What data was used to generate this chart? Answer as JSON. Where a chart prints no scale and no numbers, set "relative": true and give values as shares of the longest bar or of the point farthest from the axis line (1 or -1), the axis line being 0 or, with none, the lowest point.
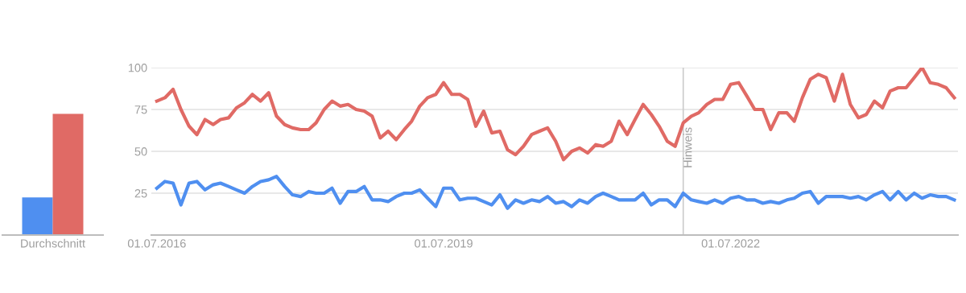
{
  "chart_data": [
    {
      "type": "bar",
      "relative": true,
      "categories": [
        "Durchschnitt"
      ],
      "series": [
        {
          "color": "#4f8ff0",
          "values": [
            0.31
          ]
        },
        {
          "color": "#e06a65",
          "values": [
            1
          ]
        }
      ]
    },
    {
      "type": "line",
      "grid": "y",
      "marker": "none",
      "line_style": "solid",
      "x": [
        "2016-07",
        "2016-08",
        "2016-09",
        "2016-10",
        "2016-11",
        "2016-12",
        "2017-01",
        "2017-02",
        "2017-03",
        "2017-04",
        "2017-05",
        "2017-06",
        "2017-07",
        "2017-08",
        "2017-09",
        "2017-10",
        "2017-11",
        "2017-12",
        "2018-01",
        "2018-02",
        "2018-03",
        "2018-04",
        "2018-05",
        "2018-06",
        "2018-07",
        "2018-08",
        "2018-09",
        "2018-10",
        "2018-11",
        "2018-12",
        "2019-01",
        "2019-02",
        "2019-03",
        "2019-04",
        "2019-05",
        "2019-06",
        "2019-07",
        "2019-08",
        "2019-09",
        "2019-10",
        "2019-11",
        "2019-12",
        "2020-01",
        "2020-02",
        "2020-03",
        "2020-04",
        "2020-05",
        "2020-06",
        "2020-07",
        "2020-08",
        "2020-09",
        "2020-10",
        "2020-11",
        "2020-12",
        "2021-01",
        "2021-02",
        "2021-03",
        "2021-04",
        "2021-05",
        "2021-06",
        "2021-07",
        "2021-08",
        "2021-09",
        "2021-10",
        "2021-11",
        "2021-12",
        "2022-01",
        "2022-02",
        "2022-03",
        "2022-04",
        "2022-05",
        "2022-06",
        "2022-07",
        "2022-08",
        "2022-09",
        "2022-10",
        "2022-11",
        "2022-12",
        "2023-01",
        "2023-02",
        "2023-03",
        "2023-04",
        "2023-05",
        "2023-06",
        "2023-07",
        "2023-08",
        "2023-09",
        "2023-10",
        "2023-11",
        "2023-12",
        "2024-01",
        "2024-02",
        "2024-03",
        "2024-04",
        "2024-05",
        "2024-06",
        "2024-07",
        "2024-08",
        "2024-09",
        "2024-10",
        "2024-11"
      ],
      "series": [
        {
          "color": "#4f8ff0",
          "values": [
            28,
            32,
            31,
            18,
            31,
            32,
            27,
            30,
            31,
            29,
            27,
            25,
            29,
            32,
            33,
            35,
            29,
            24,
            23,
            26,
            25,
            25,
            28,
            19,
            26,
            26,
            29,
            21,
            21,
            20,
            23,
            25,
            25,
            27,
            22,
            17,
            28,
            28,
            21,
            22,
            22,
            20,
            18,
            24,
            16,
            21,
            19,
            21,
            20,
            23,
            19,
            20,
            17,
            21,
            19,
            23,
            25,
            23,
            21,
            21,
            21,
            25,
            18,
            21,
            21,
            17,
            25,
            21,
            20,
            19,
            21,
            19,
            22,
            23,
            21,
            21,
            19,
            20,
            19,
            21,
            22,
            25,
            26,
            19,
            23,
            23,
            23,
            22,
            23,
            21,
            24,
            26,
            21,
            26,
            21,
            25,
            22,
            24,
            23,
            23,
            21
          ]
        },
        {
          "color": "#e06a65",
          "values": [
            80,
            82,
            87,
            75,
            65,
            60,
            69,
            66,
            69,
            70,
            76,
            79,
            84,
            80,
            85,
            71,
            66,
            64,
            63,
            63,
            67,
            75,
            80,
            77,
            78,
            75,
            74,
            71,
            58,
            62,
            57,
            63,
            68,
            77,
            82,
            84,
            91,
            84,
            84,
            81,
            65,
            74,
            61,
            62,
            51,
            48,
            53,
            60,
            62,
            64,
            56,
            45,
            50,
            52,
            49,
            54,
            53,
            56,
            68,
            60,
            69,
            78,
            72,
            65,
            56,
            53,
            67,
            71,
            73,
            78,
            81,
            81,
            90,
            91,
            83,
            75,
            75,
            63,
            73,
            73,
            68,
            82,
            93,
            96,
            94,
            80,
            96,
            78,
            70,
            72,
            80,
            76,
            86,
            88,
            88,
            94,
            100,
            91,
            90,
            88,
            82
          ]
        }
      ],
      "xlim": [
        "2016-06-10",
        "2024-11-15"
      ],
      "xticks": [
        {
          "value": "2016-07-01",
          "label": "01.07.2016"
        },
        {
          "value": "2019-07-01",
          "label": "01.07.2019"
        },
        {
          "value": "2022-07-01",
          "label": "01.07.2022"
        }
      ],
      "ylim": [
        0,
        100
      ],
      "yticks": [
        25,
        50,
        75,
        100
      ],
      "ref_lines": [
        {
          "axis": "x",
          "value": "2022-01",
          "label": "Hinweis",
          "color": "#cccccc"
        }
      ]
    }
  ]
}
